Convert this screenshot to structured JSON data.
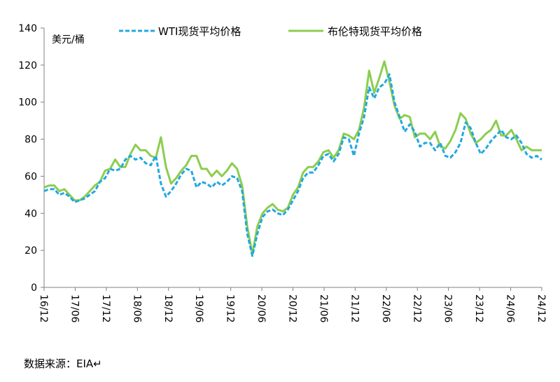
{
  "chart_data": {
    "type": "line",
    "ylabel": "美元/桶",
    "ylim": [
      0,
      140
    ],
    "yticks": [
      0,
      20,
      40,
      60,
      80,
      100,
      120,
      140
    ],
    "x_tick_labels": [
      "16/12",
      "17/06",
      "17/12",
      "18/06",
      "18/12",
      "19/06",
      "19/12",
      "20/06",
      "20/12",
      "21/06",
      "21/12",
      "22/06",
      "22/12",
      "23/06",
      "23/12",
      "24/06",
      "24/12"
    ],
    "legend_position": "top",
    "grid": false,
    "colors": {
      "wti": "#22a8e0",
      "brent": "#8ccd4f"
    },
    "series": [
      {
        "name": "WTI现货平均价格",
        "style": "dashed",
        "values": [
          52,
          53,
          53,
          50,
          51,
          49,
          46,
          47,
          48,
          50,
          52,
          57,
          59,
          64,
          63,
          64,
          69,
          71,
          69,
          70,
          67,
          66,
          71,
          56,
          49,
          52,
          56,
          61,
          64,
          63,
          54,
          57,
          56,
          54,
          57,
          55,
          57,
          60,
          59,
          52,
          29,
          17,
          29,
          38,
          41,
          42,
          40,
          39,
          42,
          47,
          52,
          59,
          62,
          62,
          66,
          71,
          72,
          68,
          72,
          81,
          80,
          71,
          83,
          92,
          108,
          102,
          108,
          110,
          115,
          100,
          92,
          84,
          88,
          84,
          76,
          78,
          78,
          74,
          78,
          71,
          70,
          73,
          78,
          89,
          86,
          78,
          72,
          75,
          79,
          82,
          85,
          81,
          80,
          82,
          78,
          72,
          70,
          71,
          69
        ]
      },
      {
        "name": "布伦特现货平均价格",
        "style": "solid",
        "values": [
          54,
          55,
          55,
          52,
          53,
          50,
          47,
          47,
          49,
          52,
          55,
          57,
          63,
          64,
          69,
          65,
          65,
          72,
          77,
          74,
          74,
          71,
          70,
          81,
          65,
          56,
          59,
          63,
          66,
          71,
          71,
          64,
          64,
          60,
          63,
          60,
          63,
          67,
          64,
          55,
          33,
          18,
          33,
          40,
          43,
          45,
          42,
          41,
          43,
          50,
          54,
          62,
          65,
          65,
          68,
          73,
          74,
          70,
          74,
          83,
          82,
          80,
          85,
          97,
          117,
          105,
          113,
          122,
          111,
          98,
          91,
          93,
          92,
          81,
          83,
          83,
          80,
          84,
          76,
          75,
          79,
          85,
          94,
          91,
          83,
          78,
          80,
          83,
          85,
          90,
          82,
          82,
          85,
          80,
          74,
          76,
          74,
          74,
          74
        ]
      }
    ]
  },
  "source_note": "数据来源：EIA↵"
}
